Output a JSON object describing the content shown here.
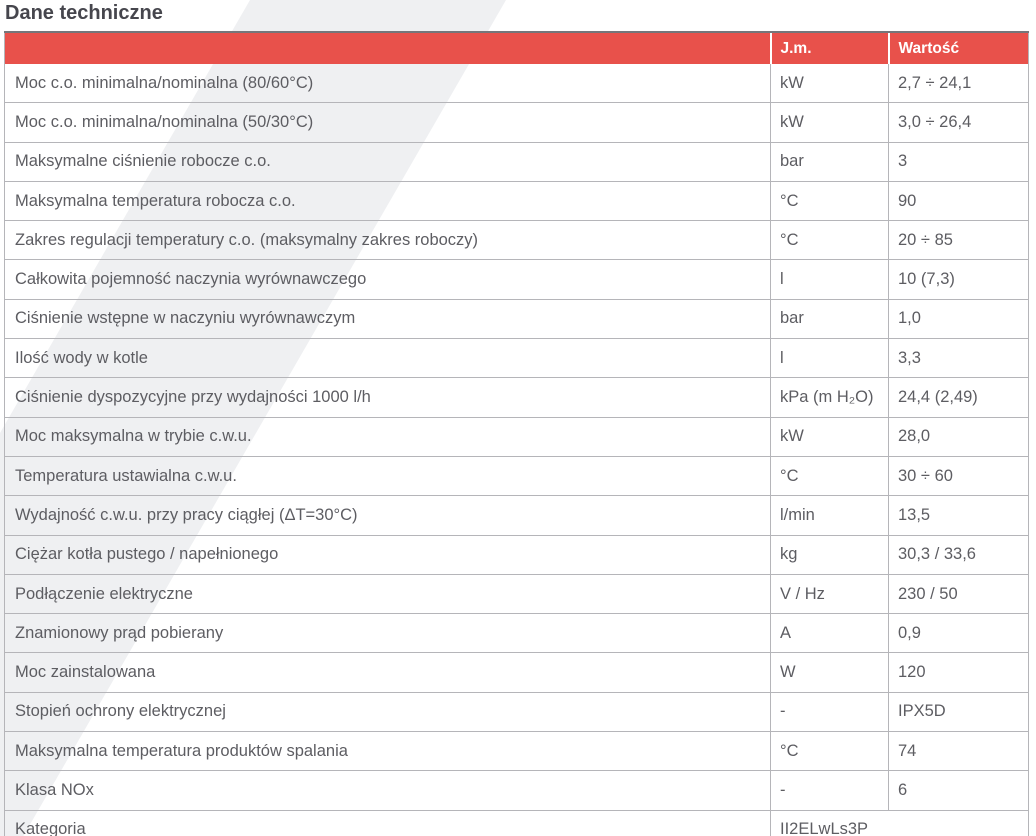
{
  "page": {
    "title": "Dane techniczne"
  },
  "colors": {
    "accent_red": "#e8514b",
    "header_text": "#ffffff",
    "body_text": "#5d5d62",
    "title_text": "#46464d",
    "table_border": "#b5b5b9",
    "watermark": "#eff0f2"
  },
  "table": {
    "columns": {
      "param": "",
      "unit": "J.m.",
      "value": "Wartość"
    },
    "rows": [
      {
        "param": "Moc c.o. minimalna/nominalna (80/60°C)",
        "unit": "kW",
        "value": "2,7 ÷ 24,1"
      },
      {
        "param": "Moc c.o. minimalna/nominalna (50/30°C)",
        "unit": "kW",
        "value": "3,0 ÷ 26,4"
      },
      {
        "param": "Maksymalne ciśnienie robocze c.o.",
        "unit": "bar",
        "value": "3"
      },
      {
        "param": "Maksymalna temperatura robocza c.o.",
        "unit": "°C",
        "value": "90"
      },
      {
        "param": "Zakres regulacji temperatury c.o. (maksymalny zakres roboczy)",
        "unit": "°C",
        "value": "20 ÷ 85"
      },
      {
        "param": "Całkowita pojemność naczynia wyrównawczego",
        "unit": "l",
        "value": "10 (7,3)"
      },
      {
        "param": "Ciśnienie wstępne w naczyniu wyrównawczym",
        "unit": "bar",
        "value": "1,0"
      },
      {
        "param": "Ilość wody w kotle",
        "unit": "l",
        "value": "3,3"
      },
      {
        "param": "Ciśnienie dyspozycyjne przy wydajności 1000 l/h",
        "unit": "kPa (m H₂O)",
        "value": "24,4 (2,49)"
      },
      {
        "param": "Moc maksymalna w trybie c.w.u.",
        "unit": "kW",
        "value": "28,0"
      },
      {
        "param": "Temperatura ustawialna c.w.u.",
        "unit": "°C",
        "value": "30 ÷ 60"
      },
      {
        "param": "Wydajność c.w.u. przy pracy ciągłej (ΔT=30°C)",
        "unit": "l/min",
        "value": "13,5"
      },
      {
        "param": "Ciężar kotła pustego / napełnionego",
        "unit": "kg",
        "value": "30,3 / 33,6"
      },
      {
        "param": "Podłączenie elektryczne",
        "unit": "V / Hz",
        "value": "230 / 50"
      },
      {
        "param": "Znamionowy prąd pobierany",
        "unit": "A",
        "value": "0,9"
      },
      {
        "param": "Moc zainstalowana",
        "unit": "W",
        "value": "120"
      },
      {
        "param": "Stopień ochrony elektrycznej",
        "unit": "-",
        "value": "IPX5D"
      },
      {
        "param": "Maksymalna temperatura produktów spalania",
        "unit": "°C",
        "value": "74"
      },
      {
        "param": "Klasa NOx",
        "unit": "-",
        "value": "6"
      },
      {
        "param": "Kategoria",
        "merged": true,
        "value": "II2ELwLs3P"
      }
    ]
  }
}
